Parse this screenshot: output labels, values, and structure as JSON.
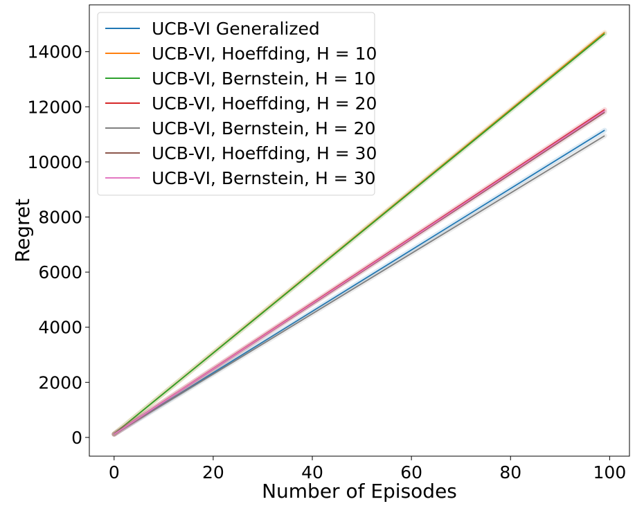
{
  "chart_data": {
    "type": "line",
    "xlabel": "Number of Episodes",
    "ylabel": "Regret",
    "xlim": [
      -5,
      104
    ],
    "ylim": [
      -680,
      15700
    ],
    "xticks": [
      0,
      20,
      40,
      60,
      80,
      100
    ],
    "yticks": [
      0,
      2000,
      4000,
      6000,
      8000,
      10000,
      12000,
      14000
    ],
    "grid": false,
    "legend_position": "top-left",
    "series": [
      {
        "name": "UCB-VI Generalized",
        "color": "#1f77b4",
        "x": [
          0,
          99
        ],
        "y": [
          120,
          11150
        ]
      },
      {
        "name": "UCB-VI, Hoeffding, H = 10",
        "color": "#ff7f0e",
        "x": [
          0,
          99
        ],
        "y": [
          130,
          14700
        ]
      },
      {
        "name": "UCB-VI, Bernstein, H = 10",
        "color": "#2ca02c",
        "x": [
          0,
          99
        ],
        "y": [
          130,
          14650
        ]
      },
      {
        "name": "UCB-VI, Hoeffding, H = 20",
        "color": "#d62728",
        "x": [
          0,
          99
        ],
        "y": [
          120,
          11900
        ]
      },
      {
        "name": "UCB-VI, Bernstein, H = 20",
        "color": "#7f7f7f",
        "x": [
          0,
          99
        ],
        "y": [
          110,
          10950
        ]
      },
      {
        "name": "UCB-VI, Hoeffding, H = 30",
        "color": "#8c564b",
        "x": [
          0,
          99
        ],
        "y": [
          115,
          11800
        ]
      },
      {
        "name": "UCB-VI, Bernstein, H = 30",
        "color": "#e377c2",
        "x": [
          0,
          99
        ],
        "y": [
          115,
          11850
        ]
      }
    ]
  }
}
